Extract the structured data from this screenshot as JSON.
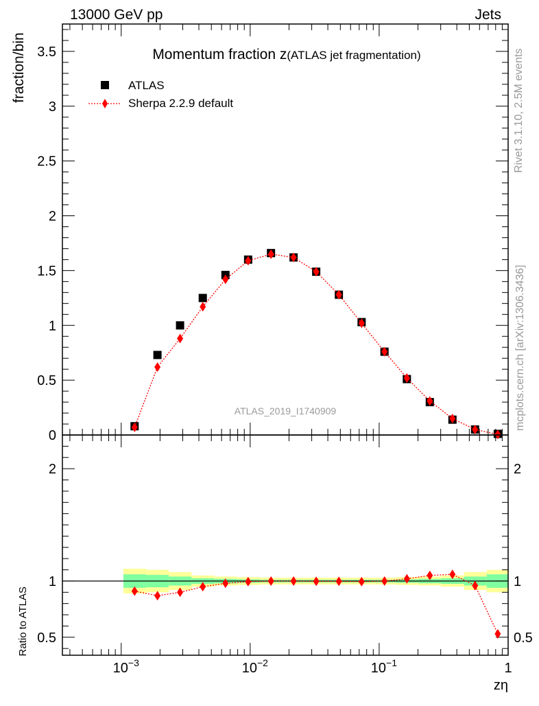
{
  "header": {
    "energy_label": "13000 GeV pp",
    "category_label": "Jets"
  },
  "side_text": {
    "rivet": "Rivet 3.1.10,  2.5M events",
    "mcplots": "mcplots.cern.ch [arXiv:1306.3436]"
  },
  "colors": {
    "data_marker": "#000000",
    "mc_line": "#ff0000",
    "band_inner": "#7fffa0",
    "band_outer": "#ffff99",
    "analysis_label": "#999999"
  },
  "chart_data": [
    {
      "type": "scatter",
      "title": "Momentum fraction z",
      "title_suffix": "(ATLAS jet fragmentation)",
      "ylabel": "fraction/bin",
      "xlabel": "",
      "x_scale": "log",
      "xlim": [
        0.00035,
        1.0
      ],
      "ylim": [
        0,
        3.75
      ],
      "y_ticks": [
        0,
        0.5,
        1,
        1.5,
        2,
        2.5,
        3,
        3.5
      ],
      "y_tick_labels": [
        "0",
        "0.5",
        "1",
        "1.5",
        "2",
        "2.5",
        "3",
        "3.5"
      ],
      "legend_placement": "top-left",
      "analysis_label": "ATLAS_2019_I1740909",
      "x": [
        0.00127,
        0.00191,
        0.00286,
        0.00429,
        0.00643,
        0.00964,
        0.0145,
        0.0217,
        0.0325,
        0.0487,
        0.0731,
        0.11,
        0.164,
        0.247,
        0.37,
        0.554,
        0.831
      ],
      "series": [
        {
          "name": "ATLAS",
          "marker": "square",
          "values": [
            0.08,
            0.73,
            1.0,
            1.25,
            1.46,
            1.6,
            1.66,
            1.62,
            1.49,
            1.28,
            1.03,
            0.76,
            0.51,
            0.3,
            0.14,
            0.05,
            0.01
          ]
        },
        {
          "name": "Sherpa 2.2.9 default",
          "marker": "diamond",
          "line": "dotted",
          "values": [
            0.07,
            0.62,
            0.88,
            1.17,
            1.42,
            1.59,
            1.65,
            1.62,
            1.49,
            1.28,
            1.02,
            0.76,
            0.52,
            0.31,
            0.15,
            0.05,
            0.005
          ]
        }
      ]
    },
    {
      "type": "line",
      "title": "",
      "ylabel": "Ratio to ATLAS",
      "xlabel": "zη",
      "x_scale": "log",
      "xlim": [
        0.00035,
        1.0
      ],
      "ylim": [
        0.34,
        2.3
      ],
      "y_ticks": [
        0.5,
        1,
        2
      ],
      "y_tick_labels": [
        "0.5",
        "1",
        "2"
      ],
      "x_tick_labels": [
        {
          "base": "10",
          "exp": "−3",
          "value": 0.001
        },
        {
          "base": "10",
          "exp": "−2",
          "value": 0.01
        },
        {
          "base": "10",
          "exp": "−1",
          "value": 0.1
        },
        {
          "base": "1",
          "exp": "",
          "value": 1
        }
      ],
      "reference_line": 1.0,
      "bin_edges": [
        0.00104,
        0.00156,
        0.00234,
        0.00351,
        0.00527,
        0.0079,
        0.0119,
        0.0178,
        0.0267,
        0.04,
        0.06,
        0.09,
        0.135,
        0.202,
        0.303,
        0.455,
        0.682,
        1.0
      ],
      "band_inner_halfwidth": [
        0.06,
        0.055,
        0.04,
        0.025,
        0.02,
        0.015,
        0.012,
        0.012,
        0.012,
        0.012,
        0.012,
        0.012,
        0.015,
        0.02,
        0.025,
        0.04,
        0.06
      ],
      "band_outer_halfwidth": [
        0.11,
        0.1,
        0.08,
        0.05,
        0.04,
        0.035,
        0.03,
        0.03,
        0.03,
        0.03,
        0.03,
        0.03,
        0.035,
        0.04,
        0.05,
        0.08,
        0.1
      ],
      "series": [
        {
          "name": "Sherpa 2.2.9 default",
          "marker": "diamond",
          "line": "dotted",
          "values": [
            0.91,
            0.87,
            0.9,
            0.95,
            0.98,
            0.995,
            1.0,
            1.0,
            0.998,
            0.998,
            0.995,
            1.0,
            1.02,
            1.05,
            1.06,
            0.96,
            0.53
          ]
        }
      ]
    }
  ]
}
